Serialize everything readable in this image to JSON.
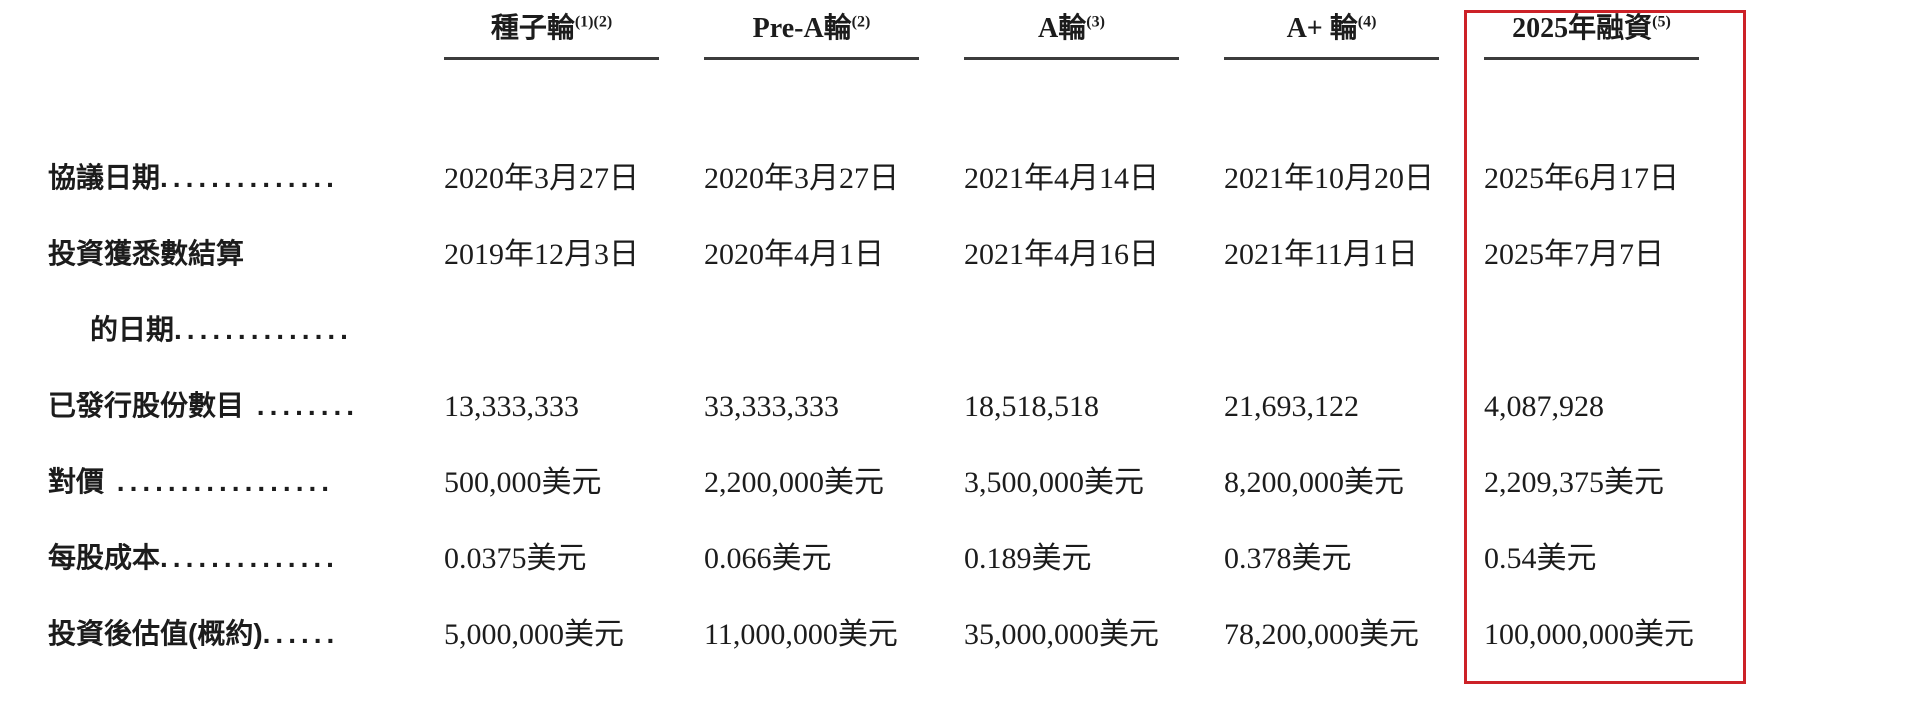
{
  "table": {
    "highlight_color": "#cc2127",
    "columns": [
      {
        "label": "種子輪",
        "superscript": "(1)(2)"
      },
      {
        "label": "Pre-A輪",
        "superscript": "(2)"
      },
      {
        "label": "A輪",
        "superscript": "(3)"
      },
      {
        "label": "A+ 輪",
        "superscript": "(4)"
      },
      {
        "label": "2025年融資",
        "superscript": "(5)",
        "highlighted": true
      }
    ],
    "rows": [
      {
        "label": "協議日期",
        "leader": "..............",
        "values": [
          "2020年3月27日",
          "2020年3月27日",
          "2021年4月14日",
          "2021年10月20日",
          "2025年6月17日"
        ]
      },
      {
        "label": "投資獲悉數結算",
        "leader": "",
        "values": [
          "2019年12月3日",
          "2020年4月1日",
          "2021年4月16日",
          "2021年11月1日",
          "2025年7月7日"
        ]
      },
      {
        "label": "的日期",
        "leader": "..............",
        "values": [
          "",
          "",
          "",
          "",
          ""
        ]
      },
      {
        "label": "已發行股份數目",
        "leader": " ........",
        "values": [
          "13,333,333",
          "33,333,333",
          "18,518,518",
          "21,693,122",
          "4,087,928"
        ]
      },
      {
        "label": "對價",
        "leader": " .................",
        "values": [
          "500,000美元",
          "2,200,000美元",
          "3,500,000美元",
          "8,200,000美元",
          "2,209,375美元"
        ]
      },
      {
        "label": "每股成本",
        "leader": "..............",
        "values": [
          "0.0375美元",
          "0.066美元",
          "0.189美元",
          "0.378美元",
          "0.54美元"
        ]
      },
      {
        "label": "投資後估值(概約)",
        "leader": "......",
        "values": [
          "5,000,000美元",
          "11,000,000美元",
          "35,000,000美元",
          "78,200,000美元",
          "100,000,000美元"
        ]
      }
    ]
  }
}
